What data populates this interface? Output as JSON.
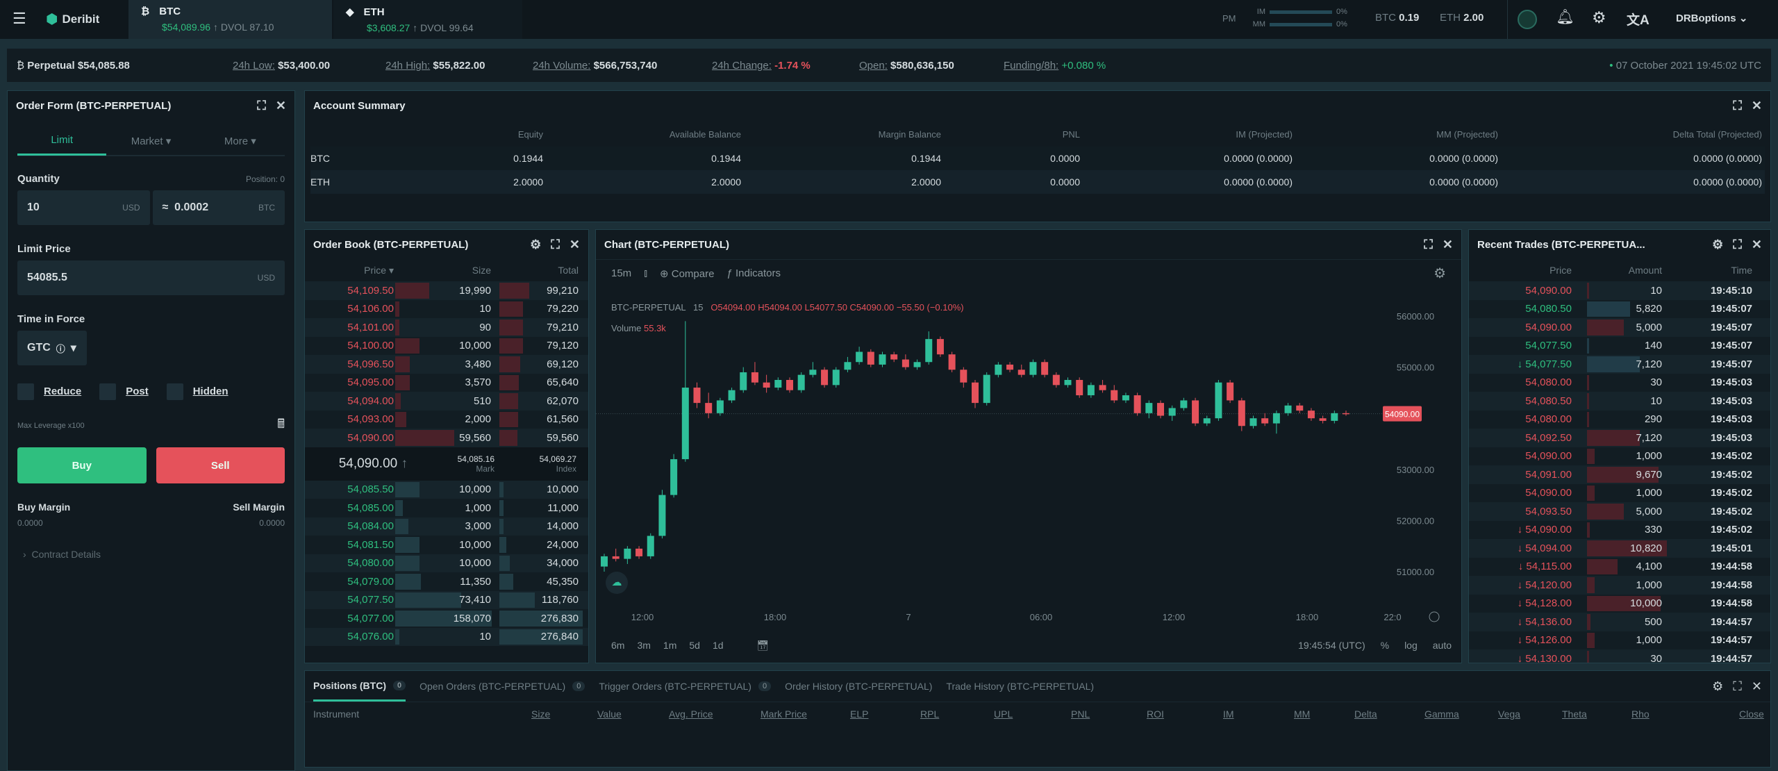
{
  "topbar": {
    "brand": "Deribit",
    "tabs": [
      {
        "name": "BTC",
        "price": "$54,089.96",
        "dvol": "DVOL 87.10"
      },
      {
        "name": "ETH",
        "price": "$3,608.27",
        "dvol": "DVOL 99.64"
      }
    ],
    "pm": "PM",
    "im_label": "IM",
    "mm_label": "MM",
    "im_pct": "0%",
    "mm_pct": "0%",
    "btc_label": "BTC",
    "btc_value": "0.19",
    "eth_label": "ETH",
    "eth_value": "2.00",
    "username": "DRBoptions"
  },
  "ticker": {
    "instrument": "Perpetual",
    "price": "$54,085.88",
    "low_label": "24h Low:",
    "low": "$53,400.00",
    "high_label": "24h High:",
    "high": "$55,822.00",
    "volume_label": "24h Volume:",
    "volume": "$566,753,740",
    "change_label": "24h Change:",
    "change": "-1.74 %",
    "open_label": "Open:",
    "open": "$580,636,150",
    "funding_label": "Funding/8h:",
    "funding": "+0.080 %",
    "datetime": "07 October 2021 19:45:02 UTC"
  },
  "order_form": {
    "title": "Order Form (BTC-PERPETUAL)",
    "tabs": [
      "Limit",
      "Market",
      "More"
    ],
    "quantity_label": "Quantity",
    "position_label": "Position: 0",
    "quantity": "10",
    "quantity_unit": "USD",
    "approx": "≈",
    "btc_amount": "0.0002",
    "btc_unit": "BTC",
    "limit_label": "Limit Price",
    "limit_price": "54085.5",
    "limit_unit": "USD",
    "tif_label": "Time in Force",
    "tif": "GTC",
    "checkboxes": [
      "Reduce",
      "Post",
      "Hidden"
    ],
    "max_leverage": "Max Leverage x100",
    "buy": "Buy",
    "sell": "Sell",
    "buy_margin_label": "Buy Margin",
    "buy_margin": "0.0000",
    "sell_margin_label": "Sell Margin",
    "sell_margin": "0.0000",
    "contract_details": "Contract Details"
  },
  "account": {
    "title": "Account Summary",
    "columns": [
      "",
      "Equity",
      "Available Balance",
      "Margin Balance",
      "PNL",
      "IM (Projected)",
      "MM (Projected)",
      "Delta Total (Projected)"
    ],
    "rows": [
      [
        "BTC",
        "0.1944",
        "0.1944",
        "0.1944",
        "0.0000",
        "0.0000 (0.0000)",
        "0.0000 (0.0000)",
        "0.0000 (0.0000)"
      ],
      [
        "ETH",
        "2.0000",
        "2.0000",
        "2.0000",
        "0.0000",
        "0.0000 (0.0000)",
        "0.0000 (0.0000)",
        "0.0000 (0.0000)"
      ]
    ]
  },
  "orderbook": {
    "title": "Order Book (BTC-PERPETUAL)",
    "columns": [
      "Price",
      "Size",
      "Total"
    ],
    "asks": [
      [
        "54,109.50",
        "19,990",
        "99,210"
      ],
      [
        "54,106.00",
        "10",
        "79,220"
      ],
      [
        "54,101.00",
        "90",
        "79,210"
      ],
      [
        "54,100.00",
        "10,000",
        "79,120"
      ],
      [
        "54,096.50",
        "3,480",
        "69,120"
      ],
      [
        "54,095.00",
        "3,570",
        "65,640"
      ],
      [
        "54,094.00",
        "510",
        "62,070"
      ],
      [
        "54,093.00",
        "2,000",
        "61,560"
      ],
      [
        "54,090.00",
        "59,560",
        "59,560"
      ]
    ],
    "last_price": "54,090.00",
    "mark": "54,085.16",
    "mark_label": "Mark",
    "index": "54,069.27",
    "index_label": "Index",
    "bids": [
      [
        "54,085.50",
        "10,000",
        "10,000"
      ],
      [
        "54,085.00",
        "1,000",
        "11,000"
      ],
      [
        "54,084.00",
        "3,000",
        "14,000"
      ],
      [
        "54,081.50",
        "10,000",
        "24,000"
      ],
      [
        "54,080.00",
        "10,000",
        "34,000"
      ],
      [
        "54,079.00",
        "11,350",
        "45,350"
      ],
      [
        "54,077.50",
        "73,410",
        "118,760"
      ],
      [
        "54,077.00",
        "158,070",
        "276,830"
      ],
      [
        "54,076.00",
        "10",
        "276,840"
      ]
    ]
  },
  "chart": {
    "title": "Chart (BTC-PERPETUAL)",
    "interval": "15m",
    "compare": "Compare",
    "indicators": "Indicators",
    "legend_symbol": "BTC-PERPETUAL",
    "legend_interval": "15",
    "legend_ohlc": "O54094.00 H54094.00 L54077.50 C54090.00 −55.50 (−0.10%)",
    "volume_label": "Volume",
    "volume_value": "55.3k",
    "ranges": [
      "6m",
      "3m",
      "1m",
      "5d",
      "1d"
    ],
    "clock": "19:45:54 (UTC)",
    "pct": "%",
    "log": "log",
    "auto": "auto"
  },
  "chart_data": {
    "type": "candlestick",
    "interval": "15m",
    "y_ticks": [
      56000,
      55000,
      54000,
      53000,
      52000,
      51000
    ],
    "y_tick_labels": [
      "56000.00",
      "55000.00",
      "54000.00",
      "53000.00",
      "52000.00",
      "51000.00"
    ],
    "ylim": [
      50800,
      56300
    ],
    "x_ticks": [
      "12:00",
      "18:00",
      "7",
      "06:00",
      "12:00",
      "18:00",
      "22:0"
    ],
    "last_price_label": "54090.00",
    "colors": {
      "up": "#2fbf9a",
      "down": "#e5525b"
    },
    "ohlc": [
      [
        51100,
        51350,
        51000,
        51300
      ],
      [
        51300,
        51450,
        51200,
        51250
      ],
      [
        51250,
        51500,
        51150,
        51450
      ],
      [
        51450,
        51500,
        51250,
        51300
      ],
      [
        51300,
        51750,
        51250,
        51700
      ],
      [
        51700,
        52600,
        51650,
        52500
      ],
      [
        52500,
        53300,
        52450,
        53200
      ],
      [
        53200,
        55900,
        53150,
        54600
      ],
      [
        54600,
        54700,
        54200,
        54300
      ],
      [
        54300,
        54500,
        54000,
        54100
      ],
      [
        54100,
        54400,
        54050,
        54350
      ],
      [
        54350,
        54600,
        54300,
        54550
      ],
      [
        54550,
        55000,
        54500,
        54900
      ],
      [
        54900,
        55100,
        54650,
        54700
      ],
      [
        54700,
        54850,
        54500,
        54600
      ],
      [
        54600,
        54800,
        54550,
        54750
      ],
      [
        54750,
        54800,
        54500,
        54550
      ],
      [
        54550,
        54900,
        54500,
        54850
      ],
      [
        54850,
        55100,
        54800,
        54950
      ],
      [
        54950,
        55000,
        54600,
        54650
      ],
      [
        54650,
        55000,
        54600,
        54950
      ],
      [
        54950,
        55200,
        54900,
        55100
      ],
      [
        55100,
        55400,
        55050,
        55300
      ],
      [
        55300,
        55350,
        55000,
        55050
      ],
      [
        55050,
        55300,
        55000,
        55250
      ],
      [
        55250,
        55300,
        55100,
        55150
      ],
      [
        55150,
        55250,
        54950,
        55000
      ],
      [
        55000,
        55150,
        54950,
        55100
      ],
      [
        55100,
        55700,
        55050,
        55550
      ],
      [
        55550,
        55600,
        55200,
        55250
      ],
      [
        55250,
        55300,
        54900,
        54950
      ],
      [
        54950,
        55000,
        54600,
        54700
      ],
      [
        54700,
        54750,
        54200,
        54300
      ],
      [
        54300,
        54900,
        54250,
        54850
      ],
      [
        54850,
        55100,
        54800,
        55050
      ],
      [
        55050,
        55100,
        54900,
        54950
      ],
      [
        54950,
        55050,
        54800,
        54850
      ],
      [
        54850,
        55150,
        54800,
        55100
      ],
      [
        55100,
        55150,
        54800,
        54850
      ],
      [
        54850,
        54900,
        54600,
        54650
      ],
      [
        54650,
        54800,
        54600,
        54750
      ],
      [
        54750,
        54800,
        54400,
        54450
      ],
      [
        54450,
        54700,
        54400,
        54650
      ],
      [
        54650,
        54750,
        54500,
        54550
      ],
      [
        54550,
        54650,
        54300,
        54350
      ],
      [
        54350,
        54500,
        54300,
        54450
      ],
      [
        54450,
        54500,
        54050,
        54100
      ],
      [
        54100,
        54350,
        54000,
        54300
      ],
      [
        54300,
        54350,
        54000,
        54050
      ],
      [
        54050,
        54250,
        53950,
        54200
      ],
      [
        54200,
        54400,
        54150,
        54350
      ],
      [
        54350,
        54400,
        53850,
        53900
      ],
      [
        53900,
        54050,
        53850,
        54000
      ],
      [
        54000,
        54750,
        53950,
        54700
      ],
      [
        54700,
        54750,
        54300,
        54350
      ],
      [
        54350,
        54400,
        53750,
        53850
      ],
      [
        53850,
        54050,
        53800,
        54000
      ],
      [
        54000,
        54100,
        53850,
        53900
      ],
      [
        53900,
        54150,
        53700,
        54100
      ],
      [
        54100,
        54300,
        54050,
        54250
      ],
      [
        54250,
        54300,
        54100,
        54150
      ],
      [
        54150,
        54200,
        53950,
        54000
      ],
      [
        54000,
        54050,
        53900,
        53950
      ],
      [
        53950,
        54150,
        53900,
        54100
      ],
      [
        54100,
        54150,
        54050,
        54090
      ]
    ]
  },
  "trades": {
    "title": "Recent Trades (BTC-PERPETUA...",
    "columns": [
      "Price",
      "Amount",
      "Time"
    ],
    "rows": [
      [
        "sell",
        "54,090.00",
        "10",
        "19:45:10",
        ""
      ],
      [
        "buy",
        "54,080.50",
        "5,820",
        "19:45:07",
        ""
      ],
      [
        "sell",
        "54,090.00",
        "5,000",
        "19:45:07",
        ""
      ],
      [
        "buy",
        "54,077.50",
        "140",
        "19:45:07",
        ""
      ],
      [
        "buy",
        "54,077.50",
        "7,120",
        "19:45:07",
        "down"
      ],
      [
        "sell",
        "54,080.00",
        "30",
        "19:45:03",
        ""
      ],
      [
        "sell",
        "54,080.50",
        "10",
        "19:45:03",
        ""
      ],
      [
        "sell",
        "54,080.00",
        "290",
        "19:45:03",
        ""
      ],
      [
        "sell",
        "54,092.50",
        "7,120",
        "19:45:03",
        ""
      ],
      [
        "sell",
        "54,090.00",
        "1,000",
        "19:45:02",
        ""
      ],
      [
        "sell",
        "54,091.00",
        "9,670",
        "19:45:02",
        ""
      ],
      [
        "sell",
        "54,090.00",
        "1,000",
        "19:45:02",
        ""
      ],
      [
        "sell",
        "54,093.50",
        "5,000",
        "19:45:02",
        ""
      ],
      [
        "sell",
        "54,090.00",
        "330",
        "19:45:02",
        "down"
      ],
      [
        "sell",
        "54,094.00",
        "10,820",
        "19:45:01",
        "down"
      ],
      [
        "sell",
        "54,115.00",
        "4,100",
        "19:44:58",
        "down"
      ],
      [
        "sell",
        "54,120.00",
        "1,000",
        "19:44:58",
        "down"
      ],
      [
        "sell",
        "54,128.00",
        "10,000",
        "19:44:58",
        "down"
      ],
      [
        "sell",
        "54,136.00",
        "500",
        "19:44:57",
        "down"
      ],
      [
        "sell",
        "54,126.00",
        "1,000",
        "19:44:57",
        "down"
      ],
      [
        "sell",
        "54,130.00",
        "30",
        "19:44:57",
        "down"
      ]
    ]
  },
  "positions": {
    "tabs": [
      {
        "label": "Positions (BTC)",
        "count": "0"
      },
      {
        "label": "Open Orders (BTC-PERPETUAL)",
        "count": "0"
      },
      {
        "label": "Trigger Orders (BTC-PERPETUAL)",
        "count": "0"
      },
      {
        "label": "Order History (BTC-PERPETUAL)",
        "count": ""
      },
      {
        "label": "Trade History (BTC-PERPETUAL)",
        "count": ""
      }
    ],
    "columns": [
      "Instrument",
      "Size",
      "Value",
      "Avg. Price",
      "Mark Price",
      "ELP",
      "RPL",
      "UPL",
      "PNL",
      "ROI",
      "IM",
      "MM",
      "Delta",
      "Gamma",
      "Vega",
      "Theta",
      "Rho",
      "Close"
    ]
  },
  "colors": {
    "green": "#2fbf7f",
    "red": "#e5525b",
    "panel": "#111a20",
    "border": "#22414a"
  }
}
